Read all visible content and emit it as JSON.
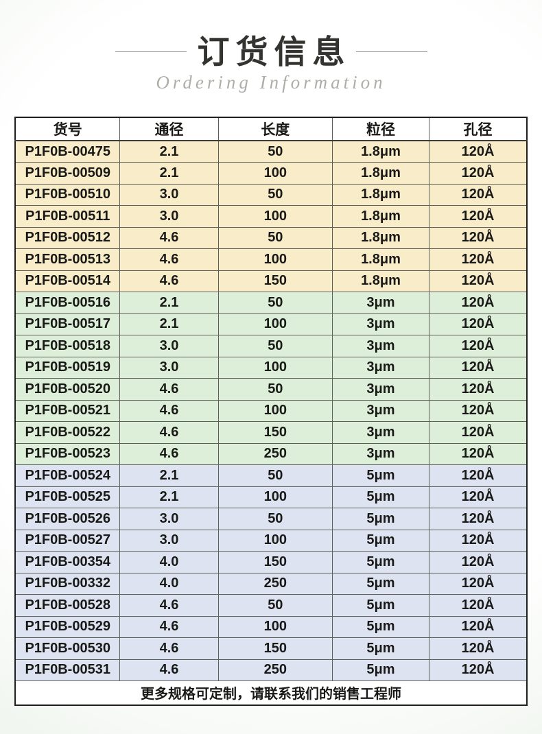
{
  "header": {
    "title": "订货信息",
    "subtitle": "Ordering Information"
  },
  "table": {
    "headers": [
      "货号",
      "通径",
      "长度",
      "粒径",
      "孔径"
    ],
    "sections": [
      {
        "name": "particle-size-1.8um",
        "row_color": "#f9ecc8",
        "rows": [
          [
            "P1F0B-00475",
            "2.1",
            "50",
            "1.8μm",
            "120Å"
          ],
          [
            "P1F0B-00509",
            "2.1",
            "100",
            "1.8μm",
            "120Å"
          ],
          [
            "P1F0B-00510",
            "3.0",
            "50",
            "1.8μm",
            "120Å"
          ],
          [
            "P1F0B-00511",
            "3.0",
            "100",
            "1.8μm",
            "120Å"
          ],
          [
            "P1F0B-00512",
            "4.6",
            "50",
            "1.8μm",
            "120Å"
          ],
          [
            "P1F0B-00513",
            "4.6",
            "100",
            "1.8μm",
            "120Å"
          ],
          [
            "P1F0B-00514",
            "4.6",
            "150",
            "1.8μm",
            "120Å"
          ]
        ]
      },
      {
        "name": "particle-size-3um",
        "row_color": "#deefd9",
        "rows": [
          [
            "P1F0B-00516",
            "2.1",
            "50",
            "3μm",
            "120Å"
          ],
          [
            "P1F0B-00517",
            "2.1",
            "100",
            "3μm",
            "120Å"
          ],
          [
            "P1F0B-00518",
            "3.0",
            "50",
            "3μm",
            "120Å"
          ],
          [
            "P1F0B-00519",
            "3.0",
            "100",
            "3μm",
            "120Å"
          ],
          [
            "P1F0B-00520",
            "4.6",
            "50",
            "3μm",
            "120Å"
          ],
          [
            "P1F0B-00521",
            "4.6",
            "100",
            "3μm",
            "120Å"
          ],
          [
            "P1F0B-00522",
            "4.6",
            "150",
            "3μm",
            "120Å"
          ],
          [
            "P1F0B-00523",
            "4.6",
            "250",
            "3μm",
            "120Å"
          ]
        ]
      },
      {
        "name": "particle-size-5um",
        "row_color": "#dee3f1",
        "rows": [
          [
            "P1F0B-00524",
            "2.1",
            "50",
            "5μm",
            "120Å"
          ],
          [
            "P1F0B-00525",
            "2.1",
            "100",
            "5μm",
            "120Å"
          ],
          [
            "P1F0B-00526",
            "3.0",
            "50",
            "5μm",
            "120Å"
          ],
          [
            "P1F0B-00527",
            "3.0",
            "100",
            "5μm",
            "120Å"
          ],
          [
            "P1F0B-00354",
            "4.0",
            "150",
            "5μm",
            "120Å"
          ],
          [
            "P1F0B-00332",
            "4.0",
            "250",
            "5μm",
            "120Å"
          ],
          [
            "P1F0B-00528",
            "4.6",
            "50",
            "5μm",
            "120Å"
          ],
          [
            "P1F0B-00529",
            "4.6",
            "100",
            "5μm",
            "120Å"
          ],
          [
            "P1F0B-00530",
            "4.6",
            "150",
            "5μm",
            "120Å"
          ],
          [
            "P1F0B-00531",
            "4.6",
            "250",
            "5μm",
            "120Å"
          ]
        ]
      }
    ],
    "footer_note": "更多规格可定制，请联系我们的销售工程师"
  }
}
